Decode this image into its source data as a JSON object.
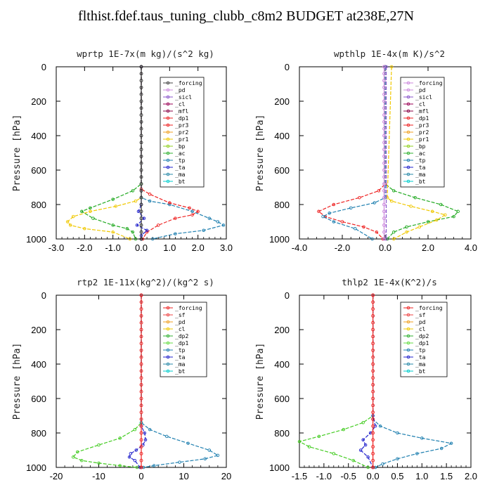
{
  "title": "flthist.fdef.taus_tuning_clubb_c8m2  BUDGET at238E,27N",
  "chart_data": [
    {
      "type": "line",
      "title": "wprtp  1E-7x(m kg)/(s^2 kg)",
      "ylabel": "Pressure [hPa]",
      "xlim": [
        -3,
        3
      ],
      "ylim": [
        1000,
        0
      ],
      "xticks": [
        "-3.0",
        "-2.0",
        "-1.0",
        "0.0",
        "1.0",
        "2.0",
        "3.0"
      ],
      "xtick_values": [
        -3,
        -2,
        -1,
        0,
        1,
        2,
        3
      ],
      "yticks": [
        "0",
        "200",
        "400",
        "600",
        "800",
        "1000"
      ],
      "ytick_values": [
        0,
        200,
        400,
        600,
        800,
        1000
      ],
      "legend": [
        "_forcing",
        "_pd",
        "_sicl",
        "_cl",
        "_mfl",
        "_dp1",
        "_pr3",
        "_pr2",
        "_pr1",
        "_bp",
        "_ac",
        "_tp",
        "_ta",
        "_ma",
        "_bt"
      ],
      "legend_colors": [
        "#444444",
        "#cc88dd",
        "#8855cc",
        "#990055",
        "#880044",
        "#ee2222",
        "#ee2222",
        "#f0a020",
        "#f0c800",
        "#90d020",
        "#30b030",
        "#2080b0",
        "#2222cc",
        "#2a8aa8",
        "#00cccc"
      ],
      "series": [
        {
          "name": "_ac",
          "color": "#22aa22",
          "x": [
            0,
            0,
            -0.3,
            -1.0,
            -1.8,
            -2.1,
            -1.7,
            -1.0,
            -0.5,
            -0.3,
            -0.2
          ],
          "y": [
            0,
            680,
            720,
            770,
            820,
            840,
            880,
            920,
            940,
            960,
            1000
          ]
        },
        {
          "name": "_pr1",
          "color": "#f0c800",
          "x": [
            0,
            0,
            -0.2,
            -0.9,
            -1.8,
            -2.4,
            -2.6,
            -2.5,
            -2.0,
            -1.0,
            -0.4
          ],
          "y": [
            0,
            760,
            780,
            810,
            840,
            870,
            900,
            920,
            940,
            960,
            1000
          ]
        },
        {
          "name": "_tp",
          "color": "#2080b0",
          "x": [
            0,
            0,
            0.3,
            1.0,
            1.8,
            2.4,
            2.7,
            2.9,
            2.2,
            1.2,
            0.4
          ],
          "y": [
            0,
            760,
            780,
            800,
            840,
            880,
            900,
            920,
            950,
            970,
            1000
          ]
        },
        {
          "name": "_dp1",
          "color": "#ee2222",
          "x": [
            0,
            0,
            0.3,
            1.0,
            1.7,
            2.0,
            1.8,
            1.2,
            0.6,
            0.2,
            0.05
          ],
          "y": [
            0,
            710,
            740,
            790,
            820,
            840,
            860,
            880,
            920,
            960,
            1000
          ]
        },
        {
          "name": "_ta",
          "color": "#2222cc",
          "x": [
            0,
            0,
            -0.1,
            0.1,
            -0.15,
            0.2,
            0,
            0
          ],
          "y": [
            0,
            800,
            840,
            880,
            920,
            950,
            980,
            1000
          ]
        },
        {
          "name": "_forcing",
          "color": "#333333",
          "x": [
            0,
            0
          ],
          "y": [
            0,
            1000
          ]
        }
      ]
    },
    {
      "type": "line",
      "title": "wpthlp  1E-4x(m K)/s^2",
      "ylabel": "Pressure [hPa]",
      "xlim": [
        -4,
        4
      ],
      "ylim": [
        1000,
        0
      ],
      "xticks": [
        "-4.0",
        "-2.0",
        "0.0",
        "2.0",
        "4.0"
      ],
      "xtick_values": [
        -4,
        -2,
        0,
        2,
        4
      ],
      "yticks": [
        "0",
        "200",
        "400",
        "600",
        "800",
        "1000"
      ],
      "ytick_values": [
        0,
        200,
        400,
        600,
        800,
        1000
      ],
      "legend": [
        "_forcing",
        "_pd",
        "_sicl",
        "_cl",
        "_mfl",
        "_dp1",
        "_pr3",
        "_pr2",
        "_pr1",
        "_bp",
        "_ac",
        "_tp",
        "_ta",
        "_ma",
        "_bt"
      ],
      "legend_colors": [
        "#cc88dd",
        "#cc88dd",
        "#8855cc",
        "#990055",
        "#880044",
        "#ee2222",
        "#ee2222",
        "#f0a020",
        "#f0c800",
        "#90d020",
        "#30b030",
        "#2080b0",
        "#2222cc",
        "#2a8aa8",
        "#00cccc"
      ],
      "series": [
        {
          "name": "_ac",
          "color": "#22aa22",
          "x": [
            0,
            0,
            0.4,
            1.4,
            2.6,
            3.4,
            3.2,
            2.0,
            1.0,
            0.4,
            0.1
          ],
          "y": [
            0,
            680,
            720,
            760,
            800,
            840,
            870,
            900,
            930,
            960,
            1000
          ]
        },
        {
          "name": "_pr1",
          "color": "#f0c800",
          "x": [
            0.3,
            0.1,
            0.3,
            1.2,
            2.2,
            2.8,
            2.4,
            1.6,
            1.0,
            0.4
          ],
          "y": [
            0,
            760,
            780,
            810,
            840,
            860,
            890,
            930,
            960,
            1000
          ]
        },
        {
          "name": "_dp1",
          "color": "#ee2222",
          "x": [
            0,
            0,
            -0.3,
            -1.2,
            -2.4,
            -3.1,
            -2.8,
            -2.0,
            -1.0,
            -0.4,
            -0.1
          ],
          "y": [
            0,
            680,
            720,
            760,
            800,
            840,
            870,
            900,
            930,
            960,
            1000
          ]
        },
        {
          "name": "_tp",
          "color": "#2080b0",
          "x": [
            0,
            0,
            -0.5,
            -1.6,
            -2.6,
            -2.9,
            -2.4,
            -1.4,
            -0.6
          ],
          "y": [
            0,
            760,
            790,
            820,
            850,
            870,
            900,
            940,
            1000
          ]
        },
        {
          "name": "_forcing",
          "color": "#cc88dd",
          "x": [
            -0.05,
            -0.05
          ],
          "y": [
            0,
            1000
          ]
        },
        {
          "name": "_sicl",
          "color": "#8855cc",
          "x": [
            0.05,
            0.05
          ],
          "y": [
            0,
            1000
          ]
        }
      ]
    },
    {
      "type": "line",
      "title": "rtp2  1E-11x(kg^2)/(kg^2 s)",
      "ylabel": "Pressure [hPa]",
      "xlim": [
        -20,
        20
      ],
      "ylim": [
        1000,
        0
      ],
      "xticks": [
        "-20",
        "-10",
        "0",
        "10",
        "20"
      ],
      "xtick_values": [
        -20,
        -10,
        0,
        10,
        20
      ],
      "yticks": [
        "0",
        "200",
        "400",
        "600",
        "800",
        "1000"
      ],
      "ytick_values": [
        0,
        200,
        400,
        600,
        800,
        1000
      ],
      "legend": [
        "_forcing",
        "_sf",
        "_pd",
        "_cl",
        "_dp2",
        "_dp1",
        "_tp",
        "_ta",
        "_ma",
        "_bt"
      ],
      "legend_colors": [
        "#ee2222",
        "#ee4444",
        "#f0a020",
        "#f0c800",
        "#30b030",
        "#66dd44",
        "#2080b0",
        "#2222cc",
        "#2a8aa8",
        "#00cccc"
      ],
      "series": [
        {
          "name": "_dp1",
          "color": "#44cc22",
          "x": [
            0,
            0,
            -1.5,
            -5,
            -10,
            -15,
            -16,
            -14,
            -10,
            -5,
            -1
          ],
          "y": [
            0,
            740,
            780,
            830,
            870,
            910,
            940,
            960,
            975,
            990,
            1000
          ]
        },
        {
          "name": "_tp",
          "color": "#2080b0",
          "x": [
            0,
            0,
            2,
            6,
            11,
            16,
            18,
            15,
            9,
            3,
            0.5
          ],
          "y": [
            0,
            740,
            780,
            820,
            860,
            900,
            930,
            950,
            970,
            990,
            1000
          ]
        },
        {
          "name": "_ta",
          "color": "#2222cc",
          "x": [
            0,
            0,
            0.8,
            1,
            0.4,
            -1.2,
            -2.5,
            -2.8,
            -1.5,
            -0.3
          ],
          "y": [
            0,
            760,
            800,
            840,
            870,
            900,
            920,
            940,
            960,
            1000
          ]
        },
        {
          "name": "_forcing",
          "color": "#ee2222",
          "x": [
            0,
            0
          ],
          "y": [
            0,
            1000
          ]
        }
      ]
    },
    {
      "type": "line",
      "title": "thlp2  1E-4x(K^2)/s",
      "ylabel": "Pressure [hPa]",
      "xlim": [
        -1.5,
        2
      ],
      "ylim": [
        1000,
        0
      ],
      "xticks": [
        "-1.5",
        "-1.0",
        "-0.5",
        "0.0",
        "0.5",
        "1.0",
        "1.5",
        "2.0"
      ],
      "xtick_values": [
        -1.5,
        -1,
        -0.5,
        0,
        0.5,
        1,
        1.5,
        2
      ],
      "yticks": [
        "0",
        "200",
        "400",
        "600",
        "800",
        "1000"
      ],
      "ytick_values": [
        0,
        200,
        400,
        600,
        800,
        1000
      ],
      "legend": [
        "_forcing",
        "_sf",
        "_pd",
        "_cl",
        "_dp2",
        "_dp1",
        "_tp",
        "_ta",
        "_ma",
        "_bt"
      ],
      "legend_colors": [
        "#ee2222",
        "#ee4444",
        "#f0a020",
        "#f0c800",
        "#30b030",
        "#66dd44",
        "#2080b0",
        "#2222cc",
        "#2a8aa8",
        "#00cccc"
      ],
      "series": [
        {
          "name": "_dp1",
          "color": "#44cc22",
          "x": [
            0,
            0,
            -0.2,
            -0.6,
            -1.1,
            -1.5,
            -1.3,
            -0.8,
            -0.4,
            -0.1
          ],
          "y": [
            0,
            700,
            740,
            780,
            820,
            850,
            880,
            920,
            960,
            1000
          ]
        },
        {
          "name": "_tp",
          "color": "#2080b0",
          "x": [
            0,
            0,
            0.15,
            0.5,
            1.0,
            1.6,
            1.4,
            0.9,
            0.5,
            0.2,
            0.05
          ],
          "y": [
            0,
            720,
            760,
            800,
            830,
            860,
            890,
            920,
            950,
            980,
            1000
          ]
        },
        {
          "name": "_ta",
          "color": "#2222cc",
          "x": [
            0,
            0,
            0.05,
            -0.05,
            -0.2,
            -0.15,
            -0.25,
            -0.1,
            0
          ],
          "y": [
            0,
            700,
            760,
            800,
            840,
            870,
            900,
            940,
            1000
          ]
        },
        {
          "name": "_forcing",
          "color": "#ee2222",
          "x": [
            0,
            0
          ],
          "y": [
            0,
            1000
          ]
        }
      ]
    }
  ]
}
